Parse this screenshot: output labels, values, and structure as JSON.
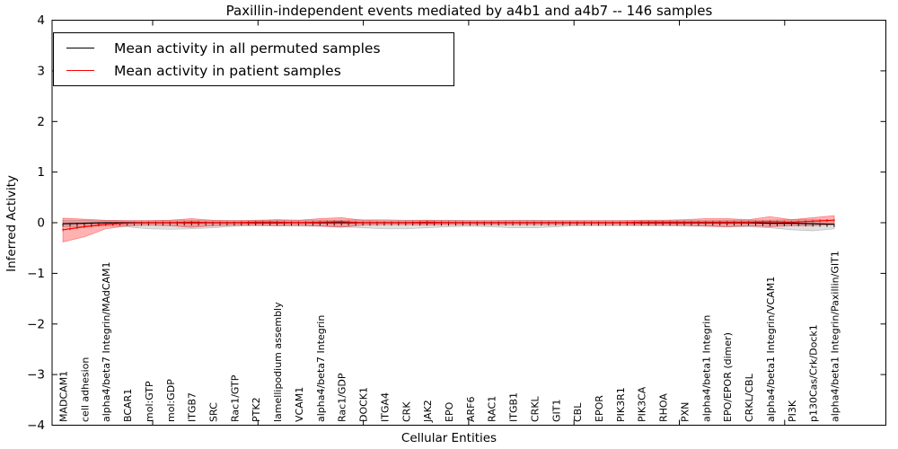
{
  "title": "Paxillin-independent events mediated by a4b1 and a4b7 -- 146 samples",
  "axes": {
    "ylabel": "Inferred Activity",
    "xlabel": "Cellular Entities",
    "yticks": [
      4,
      3,
      2,
      1,
      0,
      -1,
      -2,
      -3,
      -4
    ]
  },
  "legend": {
    "items": [
      {
        "label": "Mean activity in all permuted samples",
        "color": "#000000"
      },
      {
        "label": "Mean activity in patient samples",
        "color": "#ff0000"
      }
    ]
  },
  "chart_data": {
    "type": "line",
    "title": "Paxillin-independent events mediated by a4b1 and a4b7 -- 146 samples",
    "xlabel": "Cellular Entities",
    "ylabel": "Inferred Activity",
    "ylim": [
      -4,
      4
    ],
    "grid": false,
    "legend_position": "upper left",
    "categories": [
      "MADCAM1",
      "cell adhesion",
      "alpha4/beta7 Integrin/MAdCAM1",
      "BCAR1",
      "mol:GTP",
      "mol:GDP",
      "ITGB7",
      "SRC",
      "Rac1/GTP",
      "PTK2",
      "lamellipodium assembly",
      "VCAM1",
      "alpha4/beta7 Integrin",
      "Rac1/GDP",
      "DOCK1",
      "ITGA4",
      "CRK",
      "JAK2",
      "EPO",
      "ARF6",
      "RAC1",
      "ITGB1",
      "CRKL",
      "GIT1",
      "CBL",
      "EPOR",
      "PIK3R1",
      "PIK3CA",
      "RHOA",
      "PXN",
      "alpha4/beta1 Integrin",
      "EPO/EPOR (dimer)",
      "CRKL/CBL",
      "alpha4/beta1 Integrin/VCAM1",
      "PI3K",
      "p130Cas/Crk/Dock1",
      "alpha4/beta1 Integrin/Paxillin/GIT1"
    ],
    "series": [
      {
        "name": "Mean activity in all permuted samples",
        "color": "#000000",
        "band_fill": "rgba(128,128,128,0.25)",
        "band_edge": "rgba(128,128,128,0.45)",
        "values": [
          -0.02,
          -0.01,
          0,
          0,
          0,
          0,
          0,
          0,
          0,
          0,
          0,
          0,
          0,
          0,
          0,
          0,
          0,
          0,
          0,
          0,
          0,
          0,
          0,
          0,
          0,
          0,
          0,
          0,
          0,
          0,
          0,
          0,
          0,
          -0.01,
          -0.01,
          -0.02,
          -0.03
        ],
        "band_upper": [
          0.05,
          0.05,
          0.04,
          0.04,
          0.04,
          0.05,
          0.05,
          0.04,
          0.04,
          0.04,
          0.05,
          0.05,
          0.05,
          0.05,
          0.06,
          0.06,
          0.05,
          0.05,
          0.05,
          0.04,
          0.04,
          0.05,
          0.05,
          0.04,
          0.04,
          0.04,
          0.04,
          0.04,
          0.04,
          0.04,
          0.04,
          0.05,
          0.05,
          0.05,
          0.06,
          0.06,
          0.05
        ],
        "band_lower": [
          -0.08,
          -0.08,
          -0.06,
          -0.08,
          -0.12,
          -0.13,
          -0.12,
          -0.1,
          -0.07,
          -0.06,
          -0.06,
          -0.07,
          -0.07,
          -0.08,
          -0.1,
          -0.12,
          -0.12,
          -0.1,
          -0.08,
          -0.07,
          -0.08,
          -0.1,
          -0.1,
          -0.08,
          -0.06,
          -0.06,
          -0.06,
          -0.06,
          -0.06,
          -0.07,
          -0.07,
          -0.08,
          -0.08,
          -0.1,
          -0.14,
          -0.16,
          -0.12
        ]
      },
      {
        "name": "Mean activity in patient samples",
        "color": "#ff0000",
        "band_fill": "rgba(255,0,0,0.30)",
        "band_edge": "rgba(255,0,0,0.45)",
        "values": [
          -0.14,
          -0.08,
          -0.03,
          -0.01,
          0,
          0,
          0.01,
          0,
          0,
          0.01,
          0.01,
          0,
          0.01,
          0.02,
          0,
          0,
          0,
          0.01,
          0,
          0,
          0,
          0,
          0,
          0,
          0,
          0,
          0,
          0.01,
          0.01,
          0.01,
          0.01,
          0.01,
          0.01,
          0.02,
          0.01,
          0.03,
          0.05
        ],
        "band_upper": [
          0.09,
          0.07,
          0.05,
          0.04,
          0.04,
          0.05,
          0.08,
          0.05,
          0.04,
          0.05,
          0.06,
          0.05,
          0.08,
          0.1,
          0.05,
          0.04,
          0.04,
          0.05,
          0.04,
          0.04,
          0.04,
          0.04,
          0.04,
          0.04,
          0.04,
          0.04,
          0.04,
          0.05,
          0.05,
          0.06,
          0.08,
          0.08,
          0.06,
          0.12,
          0.06,
          0.1,
          0.14
        ],
        "band_lower": [
          -0.38,
          -0.28,
          -0.12,
          -0.06,
          -0.05,
          -0.06,
          -0.09,
          -0.06,
          -0.05,
          -0.05,
          -0.06,
          -0.05,
          -0.07,
          -0.09,
          -0.05,
          -0.04,
          -0.04,
          -0.05,
          -0.04,
          -0.04,
          -0.04,
          -0.04,
          -0.04,
          -0.04,
          -0.04,
          -0.04,
          -0.04,
          -0.05,
          -0.05,
          -0.05,
          -0.07,
          -0.08,
          -0.06,
          -0.08,
          -0.06,
          -0.06,
          -0.04
        ]
      }
    ]
  }
}
